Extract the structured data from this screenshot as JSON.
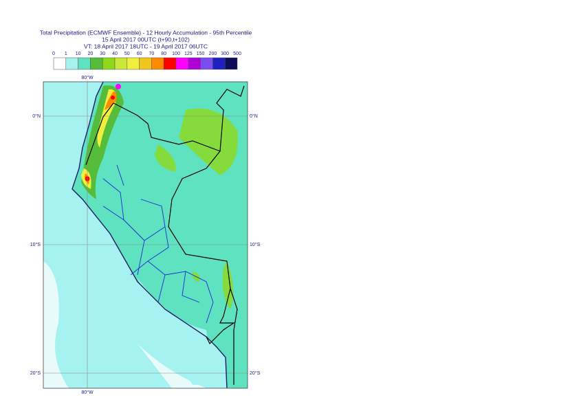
{
  "header": {
    "title": "Total Precipitation (ECMWF Ensemble) - 12 Hourly Accumulation - 95th Percentile",
    "run": "15 April 2017 00UTC (t+90,t+102)",
    "valid": "VT: 18 April 2017 18UTC - 19 April 2017 06UTC"
  },
  "legend": {
    "labels": [
      0,
      1,
      10,
      20,
      30,
      40,
      50,
      60,
      70,
      80,
      100,
      125,
      150,
      200,
      300,
      500
    ],
    "colors": [
      "#ffffff",
      "#a6f2f0",
      "#5fe2bf",
      "#55bd3a",
      "#8fd81c",
      "#cbe83a",
      "#f0f03c",
      "#f0c51c",
      "#ff8c00",
      "#ff0000",
      "#ff00ff",
      "#b000d8",
      "#7a4df0",
      "#2020c0",
      "#0e0e58"
    ]
  },
  "map": {
    "lon_label": "80°W",
    "lat_labels": [
      "0°N",
      "10°S",
      "20°S"
    ]
  }
}
